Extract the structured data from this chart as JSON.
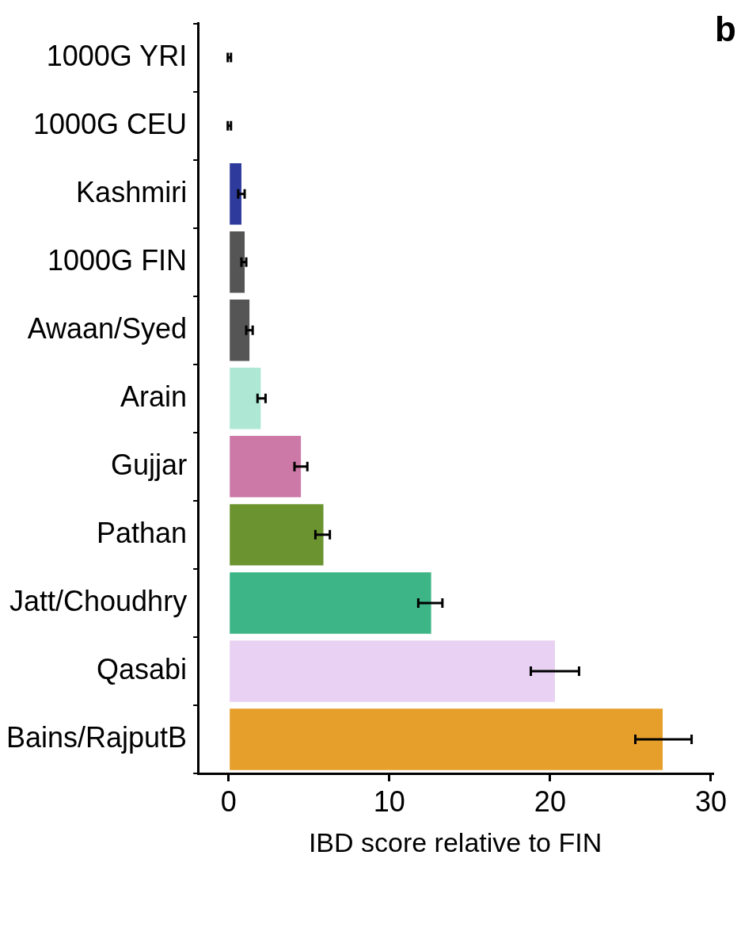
{
  "chart_data": {
    "type": "bar",
    "orientation": "horizontal",
    "xlabel": "IBD score relative to FIN",
    "annotations": [
      "b"
    ],
    "categories": [
      "1000G YRI",
      "1000G CEU",
      "Kashmiri",
      "1000G FIN",
      "Awaan/Syed",
      "Arain",
      "Gujjar",
      "Pathan",
      "Jatt/Choudhry",
      "Qasabi",
      "Bains/RajputB"
    ],
    "values": [
      0.05,
      0.05,
      0.8,
      1.0,
      1.3,
      2.0,
      4.5,
      5.9,
      12.6,
      20.3,
      27.0
    ],
    "colors": [
      "#ffffff",
      "#ffffff",
      "#2e3a9c",
      "#555555",
      "#555555",
      "#aee8d5",
      "#cc79a7",
      "#6b9430",
      "#3db587",
      "#e8d1f2",
      "#e69f2a"
    ],
    "errors": [
      [
        -0.05,
        0.15
      ],
      [
        -0.05,
        0.15
      ],
      [
        0.6,
        1.0
      ],
      [
        0.8,
        1.1
      ],
      [
        1.1,
        1.5
      ],
      [
        1.8,
        2.3
      ],
      [
        4.1,
        4.9
      ],
      [
        5.4,
        6.3
      ],
      [
        11.8,
        13.3
      ],
      [
        18.8,
        21.8
      ],
      [
        25.3,
        28.8
      ]
    ],
    "xlim": [
      -1.9,
      30.1
    ],
    "xticks": [
      0,
      10,
      20,
      30
    ],
    "grid": false,
    "legend": false
  }
}
